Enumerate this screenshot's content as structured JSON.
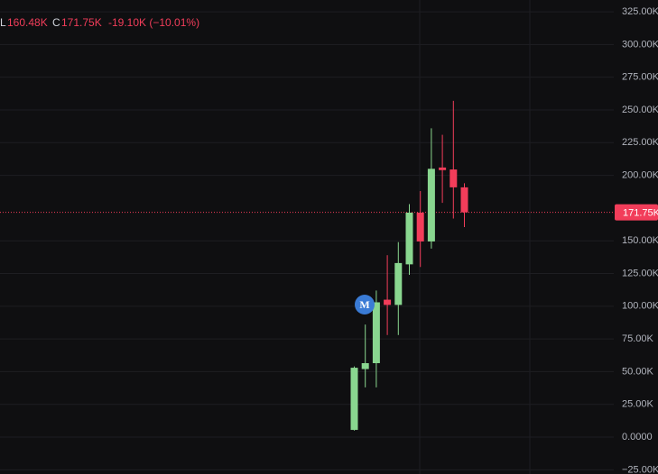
{
  "chart_data": {
    "type": "candlestick",
    "legend": [
      "L",
      "160.48K",
      "C",
      "171.75K",
      "-19.10K (−10.01%)"
    ],
    "open": [
      5.5,
      52,
      56.5,
      105,
      101,
      132,
      171.5,
      149.5,
      206,
      204.5,
      190.85
    ],
    "high": [
      54,
      86,
      112,
      139,
      149,
      178,
      188,
      236,
      231,
      257,
      194
    ],
    "low": [
      5,
      38,
      38,
      78,
      78,
      124,
      130,
      144,
      179,
      167,
      160.48
    ],
    "close": [
      53,
      56.5,
      103,
      101,
      133,
      171.5,
      149.5,
      205,
      204,
      190.85,
      171.75
    ],
    "up_color": "#89d68f",
    "down_color": "#f23d5a",
    "last_label": "171.75K",
    "marker_label": "M",
    "ylim": [
      -28.2,
      334
    ],
    "yticks": [
      {
        "value": 325,
        "label": "325.00K"
      },
      {
        "value": 300,
        "label": "300.00K"
      },
      {
        "value": 275,
        "label": "275.00K"
      },
      {
        "value": 250,
        "label": "250.00K"
      },
      {
        "value": 225,
        "label": "225.00K"
      },
      {
        "value": 200,
        "label": "200.00K"
      },
      {
        "value": 150,
        "label": "150.00K"
      },
      {
        "value": 125,
        "label": "125.00K"
      },
      {
        "value": 100,
        "label": "100.00K"
      },
      {
        "value": 75,
        "label": "75.00K"
      },
      {
        "value": 50,
        "label": "50.00K"
      },
      {
        "value": 25,
        "label": "25.00K"
      },
      {
        "value": 0,
        "label": "0.0000"
      },
      {
        "value": -25,
        "label": "−25.00K"
      }
    ],
    "grid": true
  }
}
